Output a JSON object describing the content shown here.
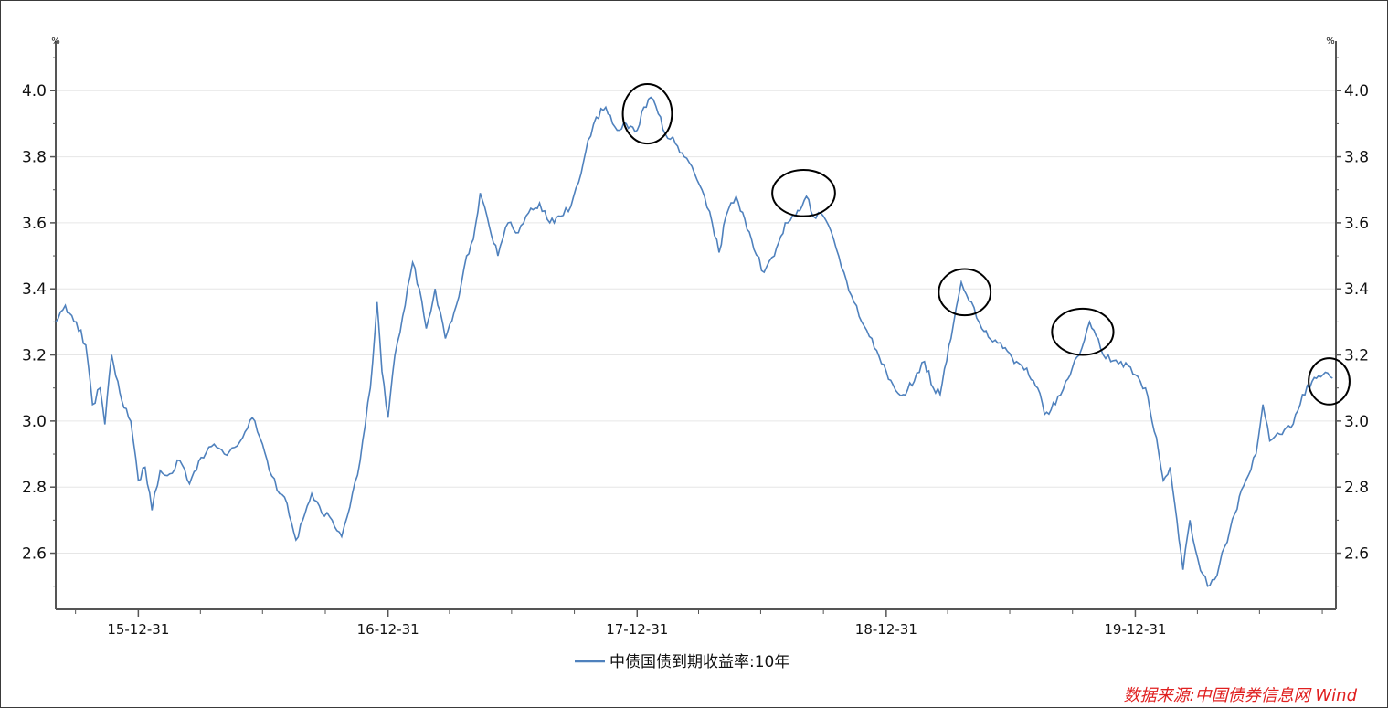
{
  "colors": {
    "series": "#4f81bd",
    "axis": "#555555",
    "grid": "#e6e6e6",
    "source": "#e02020",
    "circle": "#000000"
  },
  "source_text": "数据来源:中国债券信息网 Wind",
  "chart_data": {
    "type": "line",
    "x_type": "date",
    "x_range": [
      "2015-09-01",
      "2020-10-20"
    ],
    "ylim": [
      2.43,
      4.15
    ],
    "y_unit": "%",
    "y_ticks": [
      "2.6",
      "2.8",
      "3.0",
      "3.2",
      "3.4",
      "3.6",
      "3.8",
      "4.0"
    ],
    "x_ticks": [
      "15-12-31",
      "16-12-31",
      "17-12-31",
      "18-12-31",
      "19-12-31"
    ],
    "x_tick_dates": [
      "2015-12-31",
      "2016-12-31",
      "2017-12-31",
      "2018-12-31",
      "2019-12-31"
    ],
    "grid": true,
    "legend_position": "bottom-center",
    "series": [
      {
        "name": "中债国债到期收益率:10年",
        "points": [
          [
            "2015-09-01",
            3.3
          ],
          [
            "2015-09-15",
            3.35
          ],
          [
            "2015-10-01",
            3.3
          ],
          [
            "2015-10-15",
            3.23
          ],
          [
            "2015-10-25",
            3.05
          ],
          [
            "2015-11-05",
            3.1
          ],
          [
            "2015-11-12",
            2.99
          ],
          [
            "2015-11-22",
            3.2
          ],
          [
            "2015-12-01",
            3.12
          ],
          [
            "2015-12-10",
            3.04
          ],
          [
            "2015-12-20",
            3.0
          ],
          [
            "2015-12-31",
            2.82
          ],
          [
            "2016-01-10",
            2.86
          ],
          [
            "2016-01-20",
            2.73
          ],
          [
            "2016-02-01",
            2.85
          ],
          [
            "2016-02-15",
            2.84
          ],
          [
            "2016-03-01",
            2.88
          ],
          [
            "2016-03-15",
            2.81
          ],
          [
            "2016-04-01",
            2.89
          ],
          [
            "2016-04-20",
            2.93
          ],
          [
            "2016-05-05",
            2.9
          ],
          [
            "2016-05-20",
            2.92
          ],
          [
            "2016-06-01",
            2.95
          ],
          [
            "2016-06-15",
            3.01
          ],
          [
            "2016-06-30",
            2.93
          ],
          [
            "2016-07-10",
            2.85
          ],
          [
            "2016-07-25",
            2.78
          ],
          [
            "2016-08-05",
            2.75
          ],
          [
            "2016-08-18",
            2.64
          ],
          [
            "2016-08-28",
            2.7
          ],
          [
            "2016-09-10",
            2.78
          ],
          [
            "2016-09-25",
            2.72
          ],
          [
            "2016-10-10",
            2.7
          ],
          [
            "2016-10-24",
            2.65
          ],
          [
            "2016-11-05",
            2.74
          ],
          [
            "2016-11-20",
            2.88
          ],
          [
            "2016-12-05",
            3.1
          ],
          [
            "2016-12-15",
            3.36
          ],
          [
            "2016-12-22",
            3.15
          ],
          [
            "2016-12-31",
            3.01
          ],
          [
            "2017-01-10",
            3.2
          ],
          [
            "2017-01-25",
            3.35
          ],
          [
            "2017-02-05",
            3.48
          ],
          [
            "2017-02-15",
            3.4
          ],
          [
            "2017-02-25",
            3.28
          ],
          [
            "2017-03-10",
            3.4
          ],
          [
            "2017-03-25",
            3.25
          ],
          [
            "2017-04-10",
            3.35
          ],
          [
            "2017-04-25",
            3.5
          ],
          [
            "2017-05-05",
            3.55
          ],
          [
            "2017-05-15",
            3.69
          ],
          [
            "2017-05-25",
            3.62
          ],
          [
            "2017-06-10",
            3.5
          ],
          [
            "2017-06-25",
            3.6
          ],
          [
            "2017-07-10",
            3.57
          ],
          [
            "2017-07-25",
            3.63
          ],
          [
            "2017-08-10",
            3.66
          ],
          [
            "2017-08-25",
            3.6
          ],
          [
            "2017-09-10",
            3.62
          ],
          [
            "2017-09-25",
            3.65
          ],
          [
            "2017-10-10",
            3.75
          ],
          [
            "2017-10-20",
            3.85
          ],
          [
            "2017-11-01",
            3.92
          ],
          [
            "2017-11-15",
            3.95
          ],
          [
            "2017-11-25",
            3.9
          ],
          [
            "2017-12-05",
            3.88
          ],
          [
            "2017-12-15",
            3.9
          ],
          [
            "2017-12-31",
            3.88
          ],
          [
            "2018-01-10",
            3.95
          ],
          [
            "2018-01-20",
            3.98
          ],
          [
            "2018-01-31",
            3.93
          ],
          [
            "2018-02-10",
            3.87
          ],
          [
            "2018-02-25",
            3.84
          ],
          [
            "2018-03-10",
            3.8
          ],
          [
            "2018-03-25",
            3.75
          ],
          [
            "2018-04-05",
            3.7
          ],
          [
            "2018-04-20",
            3.6
          ],
          [
            "2018-04-30",
            3.51
          ],
          [
            "2018-05-10",
            3.62
          ],
          [
            "2018-05-25",
            3.68
          ],
          [
            "2018-06-10",
            3.58
          ],
          [
            "2018-06-20",
            3.52
          ],
          [
            "2018-07-05",
            3.45
          ],
          [
            "2018-07-20",
            3.5
          ],
          [
            "2018-08-05",
            3.6
          ],
          [
            "2018-08-20",
            3.62
          ],
          [
            "2018-09-05",
            3.68
          ],
          [
            "2018-09-15",
            3.62
          ],
          [
            "2018-09-30",
            3.62
          ],
          [
            "2018-10-15",
            3.55
          ],
          [
            "2018-10-30",
            3.45
          ],
          [
            "2018-11-10",
            3.38
          ],
          [
            "2018-11-25",
            3.3
          ],
          [
            "2018-12-10",
            3.25
          ],
          [
            "2018-12-31",
            3.15
          ],
          [
            "2019-01-10",
            3.11
          ],
          [
            "2019-01-25",
            3.08
          ],
          [
            "2019-02-10",
            3.12
          ],
          [
            "2019-02-25",
            3.18
          ],
          [
            "2019-03-10",
            3.1
          ],
          [
            "2019-03-20",
            3.08
          ],
          [
            "2019-04-05",
            3.25
          ],
          [
            "2019-04-20",
            3.42
          ],
          [
            "2019-05-05",
            3.36
          ],
          [
            "2019-05-20",
            3.28
          ],
          [
            "2019-06-05",
            3.24
          ],
          [
            "2019-06-20",
            3.22
          ],
          [
            "2019-07-10",
            3.18
          ],
          [
            "2019-07-25",
            3.16
          ],
          [
            "2019-08-10",
            3.1
          ],
          [
            "2019-08-20",
            3.02
          ],
          [
            "2019-09-05",
            3.05
          ],
          [
            "2019-09-20",
            3.12
          ],
          [
            "2019-10-10",
            3.2
          ],
          [
            "2019-10-25",
            3.3
          ],
          [
            "2019-11-10",
            3.22
          ],
          [
            "2019-11-25",
            3.18
          ],
          [
            "2019-12-10",
            3.18
          ],
          [
            "2019-12-31",
            3.14
          ],
          [
            "2020-01-15",
            3.1
          ],
          [
            "2020-01-31",
            2.95
          ],
          [
            "2020-02-10",
            2.82
          ],
          [
            "2020-02-20",
            2.86
          ],
          [
            "2020-03-01",
            2.7
          ],
          [
            "2020-03-10",
            2.55
          ],
          [
            "2020-03-20",
            2.7
          ],
          [
            "2020-04-01",
            2.58
          ],
          [
            "2020-04-15",
            2.5
          ],
          [
            "2020-04-25",
            2.52
          ],
          [
            "2020-05-10",
            2.62
          ],
          [
            "2020-05-25",
            2.72
          ],
          [
            "2020-06-10",
            2.82
          ],
          [
            "2020-06-25",
            2.9
          ],
          [
            "2020-07-05",
            3.05
          ],
          [
            "2020-07-15",
            2.94
          ],
          [
            "2020-07-30",
            2.96
          ],
          [
            "2020-08-15",
            2.98
          ],
          [
            "2020-09-01",
            3.08
          ],
          [
            "2020-09-15",
            3.12
          ],
          [
            "2020-10-01",
            3.14
          ],
          [
            "2020-10-15",
            3.13
          ]
        ]
      }
    ],
    "annotations": [
      {
        "type": "circle",
        "date": "2018-01-15",
        "y": 3.93,
        "rx_days": 36,
        "ry": 0.09
      },
      {
        "type": "circle",
        "date": "2018-09-01",
        "y": 3.69,
        "rx_days": 46,
        "ry": 0.07
      },
      {
        "type": "circle",
        "date": "2019-04-25",
        "y": 3.39,
        "rx_days": 38,
        "ry": 0.07
      },
      {
        "type": "circle",
        "date": "2019-10-15",
        "y": 3.27,
        "rx_days": 45,
        "ry": 0.07
      },
      {
        "type": "circle",
        "date": "2020-10-10",
        "y": 3.12,
        "rx_days": 30,
        "ry": 0.07
      }
    ]
  }
}
